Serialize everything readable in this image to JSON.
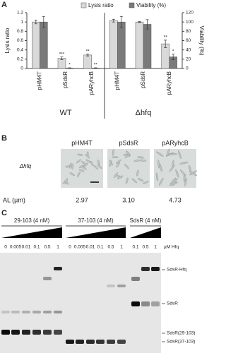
{
  "chart_data": {
    "type": "bar",
    "panel_label": "A",
    "categories": [
      "pHM4T",
      "pSdsR",
      "pARyhcB",
      "pHM4T",
      "pSdsR",
      "pARyhcB"
    ],
    "group_labels": [
      "WT",
      "Δhfq"
    ],
    "ylabel": "Lysis ratio",
    "y2label": "Viability (%)",
    "series": [
      {
        "name": "Lysis ratio",
        "color": "#d9d9d9",
        "values": [
          1.0,
          0.22,
          0.29,
          1.03,
          1.0,
          0.53
        ],
        "errors": [
          0.04,
          0.03,
          0.02,
          0.03,
          0.01,
          0.08
        ],
        "significance": [
          null,
          "***",
          "**",
          null,
          null,
          "**"
        ]
      },
      {
        "name": "Viability (%)",
        "color": "#7a7a7a",
        "axis": "y2",
        "values": [
          100,
          1,
          1,
          100,
          95,
          25
        ],
        "errors": [
          12,
          0.5,
          0.5,
          12,
          10,
          6
        ],
        "significance": [
          null,
          "*",
          "**",
          null,
          null,
          "*"
        ]
      }
    ],
    "ylim": [
      0,
      1.2
    ],
    "yticks": [
      0,
      0.2,
      0.4,
      0.6,
      0.8,
      1,
      1.2
    ],
    "y2lim": [
      0,
      120
    ],
    "y2ticks": [
      0,
      20,
      40,
      60,
      80,
      100,
      120
    ],
    "legend": "top"
  },
  "panel_b": {
    "label": "B",
    "columns": [
      "pHM4T",
      "pSdsR",
      "pARyhcB"
    ],
    "row_label": "Δhfq",
    "al_label": "AL (µm)",
    "al_values": [
      "2.97",
      "3.10",
      "4.73"
    ]
  },
  "panel_c": {
    "label": "C",
    "groups": [
      {
        "title": "29-103 (4 nM)",
        "lanes": [
          "0",
          "0.005",
          "0.01",
          "0.1",
          "0.5",
          "1"
        ]
      },
      {
        "title": "37-103 (4 nM)",
        "lanes": [
          "0",
          "0.005",
          "0.01",
          "0.1",
          "0.5",
          "1"
        ]
      },
      {
        "title": "SdsR (4 nM)",
        "lanes": [
          "0.1",
          "0.5",
          "1"
        ]
      }
    ],
    "unit": "µM Hfq",
    "bands": [
      "SdsR-Hfq",
      "SdsR",
      "SdsR(29-103)",
      "SdsR(37-103)"
    ]
  }
}
